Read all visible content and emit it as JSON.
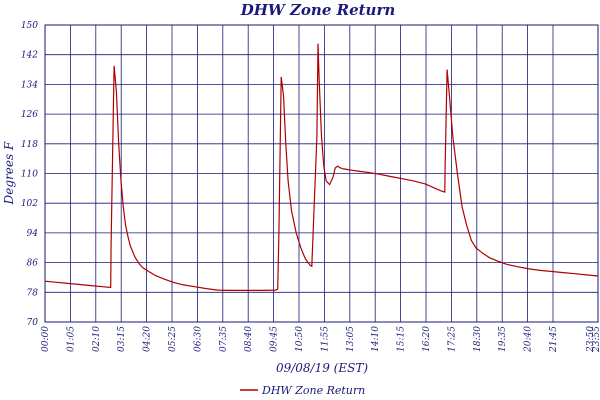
{
  "chart_data": {
    "type": "line",
    "title": "DHW Zone Return",
    "xlabel": "09/08/19 (EST)",
    "ylabel": "Degrees F",
    "ylim": [
      70,
      150
    ],
    "yticks": [
      "70",
      "78",
      "86",
      "94",
      "102",
      "110",
      "118",
      "126",
      "134",
      "142",
      "150"
    ],
    "xlim_hours": [
      0,
      24
    ],
    "xticks": [
      "00:00",
      "01:05",
      "02:10",
      "03:15",
      "04:20",
      "05:25",
      "06:30",
      "07:35",
      "08:40",
      "09:45",
      "10:50",
      "11:55",
      "13:05",
      "14:10",
      "15:15",
      "16:20",
      "17:25",
      "18:30",
      "19:35",
      "20:40",
      "21:45",
      "23:50",
      "23:55"
    ],
    "grid": true,
    "legend_position": "bottom",
    "colors": {
      "series": "#b00000",
      "grid": "#1a1a7a",
      "text": "#1a1a7a"
    },
    "series": [
      {
        "name": "DHW Zone Return",
        "x": [
          0,
          0.5,
          1.0,
          1.5,
          2.0,
          2.5,
          2.85,
          2.87,
          3.0,
          3.1,
          3.2,
          3.3,
          3.4,
          3.5,
          3.6,
          3.7,
          3.8,
          3.9,
          4.0,
          4.1,
          4.25,
          4.5,
          4.8,
          5.2,
          5.6,
          6.0,
          6.5,
          7.0,
          7.5,
          8.0,
          8.5,
          9.0,
          9.5,
          10.0,
          10.1,
          10.15,
          10.25,
          10.35,
          10.45,
          10.55,
          10.7,
          10.9,
          11.1,
          11.3,
          11.5,
          11.55,
          11.58,
          11.8,
          11.85,
          11.9,
          12.0,
          12.1,
          12.2,
          12.35,
          12.5,
          12.6,
          12.7,
          12.8,
          12.9,
          13.0,
          13.1,
          13.2,
          13.5,
          14.0,
          14.5,
          15.0,
          15.5,
          16.0,
          16.5,
          16.8,
          17.0,
          17.2,
          17.35,
          17.37,
          17.45,
          17.55,
          17.7,
          17.9,
          18.1,
          18.3,
          18.5,
          18.7,
          19.0,
          19.3,
          19.6,
          20.0,
          20.5,
          21.0,
          21.5,
          22.0,
          22.5,
          23.0,
          23.5,
          24.0
        ],
        "values": [
          81,
          80.7,
          80.4,
          80.1,
          79.8,
          79.5,
          79.3,
          91,
          139,
          132,
          118,
          108,
          101,
          96,
          93,
          90.5,
          89,
          87.5,
          86.5,
          85.6,
          84.6,
          83.6,
          82.5,
          81.5,
          80.6,
          80,
          79.5,
          79,
          78.6,
          78.5,
          78.5,
          78.5,
          78.5,
          78.6,
          78.8,
          94,
          136,
          131,
          118,
          108,
          100,
          94,
          90,
          87,
          85.3,
          85.1,
          85,
          120,
          145,
          135,
          120,
          112,
          108,
          107,
          109,
          111.5,
          112,
          111.6,
          111.3,
          111.2,
          111.1,
          111,
          110.7,
          110.3,
          109.8,
          109.2,
          108.6,
          108,
          107.2,
          106.4,
          105.8,
          105.3,
          105,
          113,
          138,
          131,
          120,
          110,
          101,
          96,
          92,
          90,
          88.5,
          87.3,
          86.5,
          85.6,
          84.9,
          84.3,
          83.9,
          83.6,
          83.3,
          83,
          82.7,
          82.4
        ]
      }
    ]
  }
}
